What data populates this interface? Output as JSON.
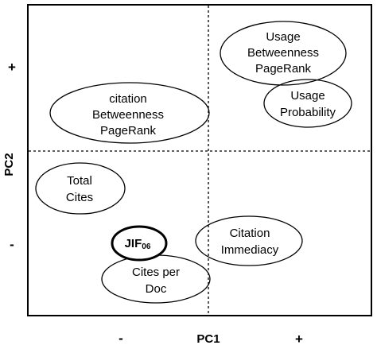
{
  "axes": {
    "x_title": "PC1",
    "y_title": "PC2",
    "x_minus": "-",
    "x_plus": "+",
    "y_plus": "+",
    "y_minus": "-"
  },
  "clusters": [
    {
      "id": "usage-cluster",
      "lines": [
        "Usage",
        "Betweenness",
        "PageRank"
      ]
    },
    {
      "id": "usage-probability",
      "lines": [
        "Usage",
        "Probability"
      ]
    },
    {
      "id": "citation-cluster",
      "lines": [
        "citation",
        "Betweenness",
        "PageRank"
      ]
    },
    {
      "id": "total-cites",
      "lines": [
        "Total",
        "Cites"
      ]
    },
    {
      "id": "citation-immediacy",
      "lines": [
        "Citation",
        "Immediacy"
      ]
    },
    {
      "id": "cites-per-doc",
      "lines": [
        "Cites per",
        "Doc"
      ]
    }
  ],
  "jif": {
    "main": "JIF",
    "sub": "06"
  },
  "colors": {
    "stroke": "#000000",
    "background": "#ffffff"
  }
}
